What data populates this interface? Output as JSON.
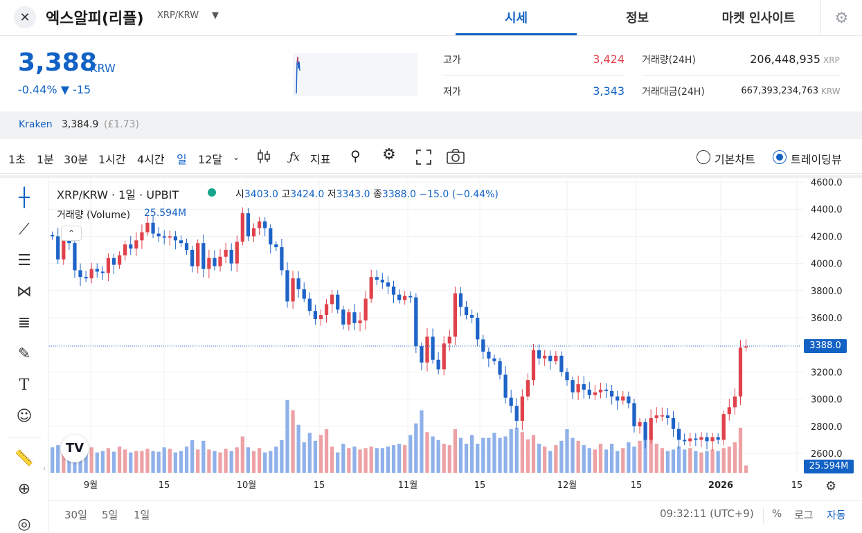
{
  "header": {
    "coin_name": "엑스알피(리플)",
    "pair": "XRP/KRW",
    "tabs": [
      {
        "label": "시세",
        "active": true
      },
      {
        "label": "정보",
        "active": false
      },
      {
        "label": "마켓 인사이트",
        "active": false
      }
    ],
    "icons": {
      "close": "close-icon",
      "dropdown": "chevron-down-icon",
      "settings": "gear-icon"
    }
  },
  "price": {
    "current": "3,388",
    "unit": "KRW",
    "change": "-0.44% ▼ -15"
  },
  "stats": {
    "high_label": "고가",
    "high_value": "3,424",
    "low_label": "저가",
    "low_value": "3,343",
    "volume_label": "거래량(24H)",
    "volume_value": "206,448,935",
    "volume_unit": "XRP",
    "amount_label": "거래대금(24H)",
    "amount_value": "667,393,234,763",
    "amount_unit": "KRW"
  },
  "kraken": {
    "label": "Kraken",
    "price": "3,384.9",
    "gbp": "(£1.73)"
  },
  "toolbar": {
    "intervals": [
      "1초",
      "1분",
      "30분",
      "1시간",
      "4시간",
      "일",
      "12달"
    ],
    "active_interval": "일",
    "indicator_label": "지표",
    "chart_modes": [
      {
        "label": "기본차트",
        "selected": false
      },
      {
        "label": "트레이딩뷰",
        "selected": true
      }
    ]
  },
  "chart": {
    "legend_title": "XRP/KRW · 1일 · UPBIT",
    "ohlc": {
      "o_label": "시",
      "o": "3403.0",
      "h_label": "고",
      "h": "3424.0",
      "l_label": "저",
      "l": "3343.0",
      "c_label": "종",
      "c": "3388.0",
      "change": "−15.0 (−0.44%)"
    },
    "volume_label": "거래량 (Volume)",
    "volume_value": "25.594M",
    "price_tag": "3388.0",
    "volume_tag": "25.594M",
    "x_labels": [
      "9월",
      "15",
      "10월",
      "15",
      "11월",
      "15",
      "12월",
      "15",
      "2026",
      "15"
    ],
    "y_labels": [
      "4600.0",
      "4400.0",
      "4200.0",
      "4000.0",
      "3800.0",
      "3600.0",
      "3400.0",
      "3200.0",
      "3000.0",
      "2800.0",
      "2600.0"
    ],
    "colors": {
      "up": "#e0424b",
      "down": "#1e63c7",
      "vol_up": "#eda1a5",
      "vol_down": "#8fb1ea"
    }
  },
  "chart_data": {
    "type": "candlestick",
    "ylim": [
      2500,
      4650
    ],
    "open": [
      4210,
      4200,
      4030,
      4200,
      4150,
      3950,
      3900,
      3890,
      3960,
      3940,
      3930,
      4040,
      3990,
      4060,
      4140,
      4110,
      4170,
      4230,
      4300,
      4220,
      4200,
      4190,
      4200,
      4170,
      4150,
      4100,
      3980,
      4150,
      3960,
      4040,
      3980,
      4050,
      4100,
      4000,
      4160,
      4370,
      4200,
      4260,
      4310,
      4260,
      4140,
      4120,
      3950,
      3720,
      3890,
      3810,
      3740,
      3650,
      3590,
      3620,
      3700,
      3770,
      3660,
      3550,
      3640,
      3560,
      3580,
      3740,
      3900,
      3880,
      3860,
      3830,
      3770,
      3730,
      3760,
      3750,
      3390,
      3270,
      3460,
      3290,
      3220,
      3410,
      3460,
      3780,
      3680,
      3620,
      3600,
      3440,
      3350,
      3300,
      3280,
      3180,
      3010,
      2950,
      2840,
      3020,
      3140,
      3360,
      3300,
      3320,
      3280,
      3320,
      3200,
      3140,
      3050,
      3110,
      3070,
      3030,
      3050,
      3070,
      3060,
      3020,
      2990,
      3020,
      2970,
      2800,
      2830,
      2700,
      2860,
      2880,
      2880,
      2860,
      2780,
      2700,
      2690,
      2710,
      2700,
      2720,
      2690,
      2720,
      2700,
      2890,
      2940,
      3020,
      3380
    ],
    "close": [
      4200,
      4030,
      4200,
      4150,
      3950,
      3900,
      3890,
      3960,
      3940,
      3930,
      4040,
      3990,
      4060,
      4140,
      4110,
      4170,
      4230,
      4300,
      4220,
      4200,
      4190,
      4200,
      4170,
      4150,
      4100,
      3980,
      4150,
      3960,
      4040,
      3980,
      4050,
      4100,
      4000,
      4160,
      4370,
      4200,
      4260,
      4310,
      4260,
      4140,
      4120,
      3950,
      3720,
      3890,
      3810,
      3740,
      3650,
      3590,
      3620,
      3700,
      3770,
      3660,
      3550,
      3640,
      3560,
      3580,
      3740,
      3900,
      3880,
      3860,
      3830,
      3770,
      3730,
      3760,
      3750,
      3390,
      3270,
      3460,
      3290,
      3220,
      3410,
      3460,
      3780,
      3680,
      3620,
      3600,
      3440,
      3350,
      3300,
      3280,
      3180,
      3010,
      2950,
      2840,
      3020,
      3140,
      3360,
      3300,
      3320,
      3280,
      3320,
      3200,
      3140,
      3050,
      3110,
      3070,
      3030,
      3050,
      3070,
      3060,
      3020,
      2990,
      3020,
      2970,
      2800,
      2830,
      2700,
      2860,
      2880,
      2880,
      2860,
      2780,
      2700,
      2690,
      2710,
      2700,
      2720,
      2690,
      2720,
      2700,
      2890,
      2940,
      3020,
      3380,
      3388
    ],
    "volume": [
      0.35,
      0.38,
      0.42,
      0.45,
      0.36,
      0.3,
      0.33,
      0.35,
      0.28,
      0.3,
      0.34,
      0.29,
      0.36,
      0.32,
      0.28,
      0.3,
      0.3,
      0.33,
      0.3,
      0.29,
      0.35,
      0.33,
      0.28,
      0.3,
      0.36,
      0.45,
      0.32,
      0.44,
      0.32,
      0.3,
      0.28,
      0.33,
      0.3,
      0.35,
      0.5,
      0.35,
      0.3,
      0.34,
      0.28,
      0.3,
      0.36,
      0.45,
      1.0,
      0.86,
      0.66,
      0.42,
      0.55,
      0.44,
      0.52,
      0.6,
      0.36,
      0.28,
      0.4,
      0.34,
      0.36,
      0.32,
      0.34,
      0.36,
      0.34,
      0.34,
      0.36,
      0.38,
      0.4,
      0.38,
      0.52,
      0.68,
      0.86,
      0.56,
      0.5,
      0.45,
      0.4,
      0.38,
      0.6,
      0.48,
      0.4,
      0.52,
      0.4,
      0.48,
      0.48,
      0.55,
      0.48,
      0.5,
      0.6,
      0.62,
      0.56,
      0.46,
      0.52,
      0.4,
      0.36,
      0.3,
      0.38,
      0.44,
      0.6,
      0.48,
      0.44,
      0.38,
      0.34,
      0.32,
      0.4,
      0.32,
      0.4,
      0.3,
      0.34,
      0.42,
      0.36,
      0.44,
      0.46,
      0.56,
      0.4,
      0.34,
      0.3,
      0.32,
      0.36,
      0.32,
      0.34,
      0.3,
      0.28,
      0.3,
      0.32,
      0.3,
      0.34,
      0.36,
      0.42,
      0.62,
      0.1
    ]
  }
}
